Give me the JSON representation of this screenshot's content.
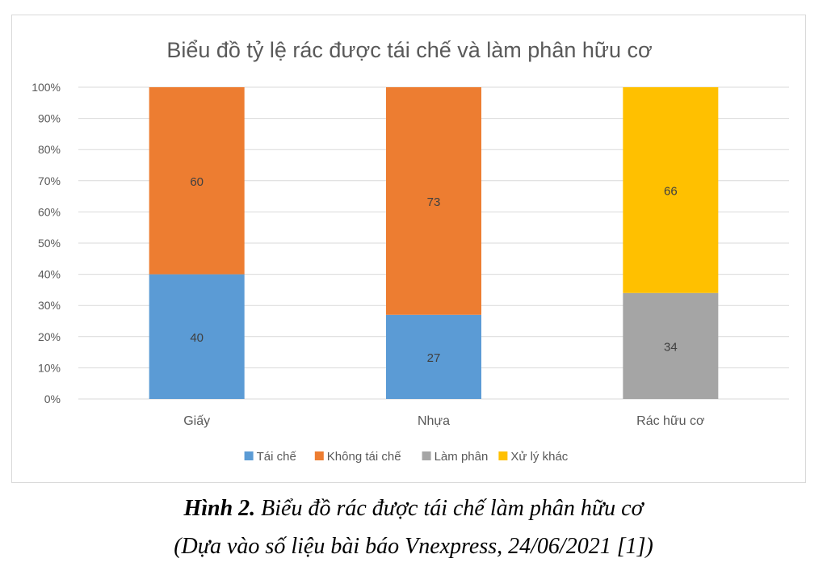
{
  "chart_data": {
    "type": "bar",
    "stacked": true,
    "percent_stacked": true,
    "title": "Biểu đồ tỷ lệ rác được tái chế và làm phân hữu cơ",
    "categories": [
      "Giấy",
      "Nhựa",
      "Rác hữu cơ"
    ],
    "series": [
      {
        "name": "Tái chế",
        "color": "#5b9bd5",
        "values": [
          40,
          27,
          0
        ]
      },
      {
        "name": "Không tái chế",
        "color": "#ed7d31",
        "values": [
          60,
          73,
          0
        ]
      },
      {
        "name": "Làm phân",
        "color": "#a5a5a5",
        "values": [
          0,
          0,
          34
        ]
      },
      {
        "name": "Xử lý khác",
        "color": "#ffc000",
        "values": [
          0,
          0,
          66
        ]
      }
    ],
    "ylim": [
      0,
      100
    ],
    "yticks": [
      "0%",
      "10%",
      "20%",
      "30%",
      "40%",
      "50%",
      "60%",
      "70%",
      "80%",
      "90%",
      "100%"
    ],
    "grid": true,
    "legend_position": "bottom",
    "data_labels": true
  },
  "caption": {
    "figure_label": "Hình 2.",
    "figure_text": " Biểu đồ rác được tái chế làm phân hữu cơ",
    "source": "(Dựa vào số liệu bài báo Vnexpress, 24/06/2021 [1])"
  }
}
